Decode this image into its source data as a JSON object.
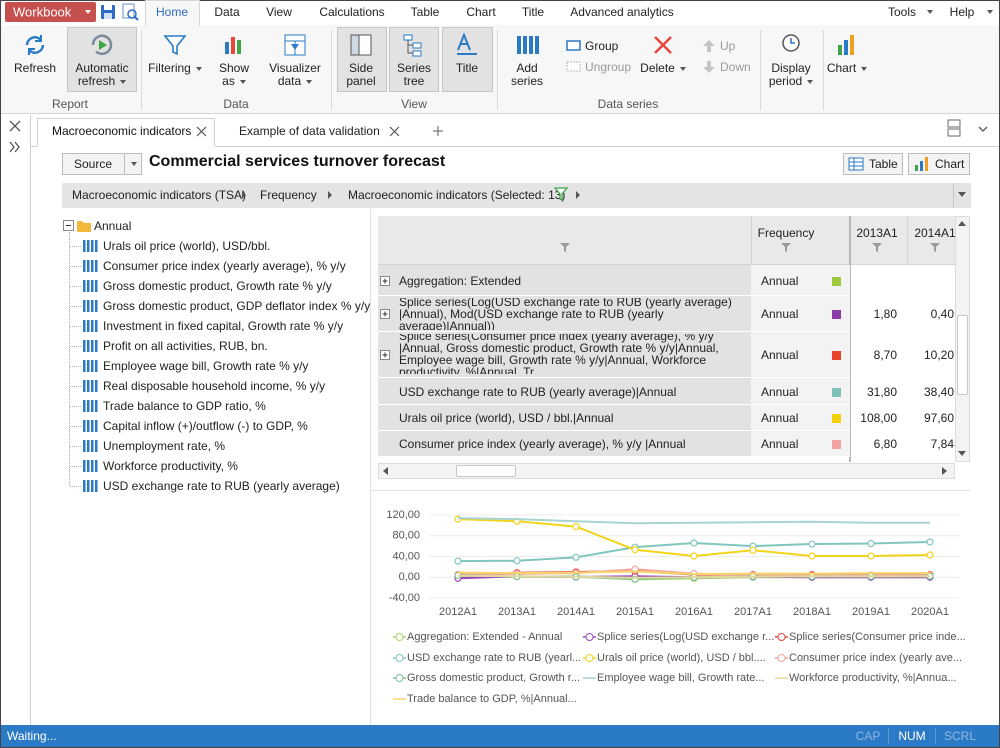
{
  "titlebar": {
    "workbook": "Workbook"
  },
  "menu": {
    "items": [
      "Home",
      "Data",
      "View",
      "Calculations",
      "Table",
      "Chart",
      "Title",
      "Advanced analytics"
    ],
    "right": [
      "Tools",
      "Help"
    ]
  },
  "ribbon": {
    "buttons": [
      "Refresh",
      "Automatic refresh",
      "Filtering",
      "Show as",
      "Visualizer data",
      "Side panel",
      "Series tree",
      "Title",
      "Add series",
      "Group",
      "Ungroup",
      "Delete",
      "Up",
      "Down",
      "Display period",
      "Chart"
    ],
    "groups": [
      "Report",
      "Data",
      "View",
      "Data series"
    ]
  },
  "tabs": [
    "Macroeconomic indicators",
    "Example of data validation"
  ],
  "toolbar": {
    "source": "Source",
    "title": "Commercial services turnover forecast",
    "table": "Table",
    "chart": "Chart"
  },
  "breadcrumbs": [
    "Macroeconomic indicators (TSA)",
    "Frequency",
    "Macroeconomic indicators (Selected: 13)"
  ],
  "tree": {
    "root": "Annual",
    "items": [
      "Urals oil price (world), USD/bbl.",
      "Consumer price index (yearly average), % y/y",
      "Gross domestic product, Growth rate % y/y",
      "Gross domestic product, GDP deflator index % y/y",
      "Investment in fixed capital, Growth rate % y/y",
      "Profit on all activities, RUB, bn.",
      "Employee wage bill, Growth rate % y/y",
      "Real disposable household income, % y/y",
      "Trade balance to GDP ratio, %",
      "Capital inflow (+)/outflow (-) to GDP, %",
      "Unemployment rate, %",
      "Workforce productivity, %",
      "USD exchange rate to RUB (yearly average)"
    ]
  },
  "table": {
    "columns": [
      "Frequency",
      "2013A1",
      "2014A1"
    ],
    "rows": [
      {
        "name": "Aggregation: Extended",
        "frequency": "Annual",
        "color": "#9cc83a"
      },
      {
        "name": "Splice series(Log(USD exchange rate to RUB (yearly average) |Annual), Mod(USD exchange rate to RUB (yearly average)|Annual))",
        "frequency": "Annual",
        "color": "#8e3ca6",
        "values": [
          "1,80",
          "0,40"
        ]
      },
      {
        "name": "Splice series(Consumer price index (yearly average), % y/y |Annual, Gross domestic product, Growth rate % y/y|Annual, Employee wage bill, Growth rate % y/y|Annual, Workforce productivity, %|Annual, Tr...",
        "frequency": "Annual",
        "color": "#e8452c",
        "values": [
          "8,70",
          "10,20"
        ]
      },
      {
        "name": "USD exchange rate to RUB (yearly average)|Annual",
        "frequency": "Annual",
        "color": "#7fc0b9",
        "values": [
          "31,80",
          "38,40"
        ]
      },
      {
        "name": "Urals oil price (world), USD / bbl.|Annual",
        "frequency": "Annual",
        "color": "#f5d10a",
        "values": [
          "108,00",
          "97,60"
        ]
      },
      {
        "name": "Consumer price index (yearly average), % y/y |Annual",
        "frequency": "Annual",
        "color": "#f2a2a0",
        "values": [
          "6,80",
          "7,84"
        ]
      }
    ]
  },
  "status": {
    "text": "Waiting...",
    "indicators": [
      "CAP",
      "NUM",
      "SCRL"
    ]
  },
  "chart_data": {
    "type": "line",
    "categories": [
      "2012A1",
      "2013A1",
      "2014A1",
      "2015A1",
      "2016A1",
      "2017A1",
      "2018A1",
      "2019A1",
      "2020A1"
    ],
    "ylim": [
      -40,
      120
    ],
    "yticks": [
      {
        "value": -40,
        "label": "-40,00"
      },
      {
        "value": 0,
        "label": "0,00"
      },
      {
        "value": 40,
        "label": "40,00"
      },
      {
        "value": 80,
        "label": "80,00"
      },
      {
        "value": 120,
        "label": "120,00"
      }
    ],
    "grid": true,
    "series": [
      {
        "name": "Aggregation: Extended - Annual",
        "color": "#a8d46a",
        "marker": true,
        "values": [
          1,
          1,
          2,
          -4,
          -2,
          0,
          0,
          0,
          0
        ]
      },
      {
        "name": "Splice series(Log(USD exchange r...",
        "color": "#9b45c0",
        "marker": true,
        "values": [
          -2,
          1.8,
          0.4,
          2,
          0,
          1,
          0,
          0,
          0
        ]
      },
      {
        "name": "Splice series(Consumer price inde...",
        "color": "#e8453c",
        "marker": true,
        "values": [
          5,
          8.7,
          10.2,
          12,
          5,
          5,
          5,
          4,
          5
        ]
      },
      {
        "name": "USD exchange rate to RUB (yearl...",
        "color": "#80c6bf",
        "marker": true,
        "values": [
          31,
          31.8,
          38.4,
          58,
          66,
          60,
          64,
          65,
          68
        ]
      },
      {
        "name": "Urals oil price (world), USD / bbl....",
        "color": "#f2d41b",
        "marker": true,
        "values": [
          112,
          108,
          97.6,
          53,
          41,
          52,
          41,
          41,
          43
        ]
      },
      {
        "name": "Consumer price index (yearly ave...",
        "color": "#f4a29c",
        "marker": true,
        "values": [
          5,
          6.8,
          7.84,
          15.5,
          7,
          4,
          3,
          4,
          4
        ]
      },
      {
        "name": "Gross domestic product, Growth r...",
        "color": "#7fc393",
        "marker": true,
        "values": [
          3.5,
          1.3,
          0.7,
          -3.7,
          -0.2,
          1.5,
          1.5,
          1.7,
          2
        ]
      },
      {
        "name": "Employee wage bill, Growth rate...",
        "color": "#a9d3d3",
        "marker": false,
        "values": [
          114,
          112,
          108,
          104,
          105,
          106,
          107,
          105,
          105
        ]
      },
      {
        "name": "Workforce productivity, %|Annua...",
        "color": "#e0d79a",
        "marker": false,
        "values": [
          3,
          2,
          1,
          -1,
          0,
          1,
          2,
          2,
          2
        ]
      },
      {
        "name": "Trade balance to GDP, %|Annual...",
        "color": "#f5d56b",
        "marker": false,
        "values": [
          9,
          8,
          9,
          11,
          6,
          7,
          7,
          8,
          8
        ]
      }
    ]
  }
}
